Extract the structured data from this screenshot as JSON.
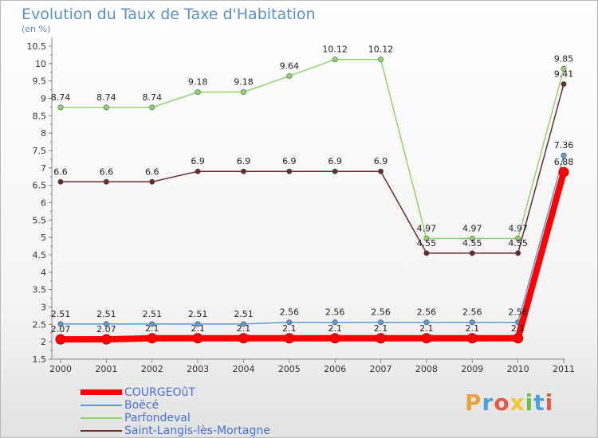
{
  "header": {
    "title": "Evolution du Taux de Taxe d'Habitation",
    "subtitle": "(en %)"
  },
  "branding": {
    "logo_text": "Proxiti",
    "logo_letters": [
      {
        "ch": "P",
        "color": "#e8a33b"
      },
      {
        "ch": "r",
        "color": "#4aa3df"
      },
      {
        "ch": "o",
        "color": "#e25b45"
      },
      {
        "ch": "x",
        "color": "#f2c531"
      },
      {
        "ch": "i",
        "color": "#6cc04a"
      },
      {
        "ch": "t",
        "color": "#4aa3df"
      },
      {
        "ch": "i",
        "color": "#e25b45"
      }
    ]
  },
  "chart_data": {
    "type": "line",
    "title": "Evolution du Taux de Taxe d'Habitation",
    "ylabel": "(en %)",
    "xlabel": "",
    "x": [
      "2000",
      "2001",
      "2002",
      "2003",
      "2004",
      "2005",
      "2006",
      "2007",
      "2008",
      "2009",
      "2010",
      "2011"
    ],
    "ylim": [
      1.5,
      10.5
    ],
    "yticks": [
      1.5,
      2,
      2.5,
      3,
      3.5,
      4,
      4.5,
      5,
      5.5,
      6,
      6.5,
      7,
      7.5,
      8,
      8.5,
      9,
      9.5,
      10,
      10.5
    ],
    "grid": false,
    "legend": "bottom-left",
    "series": [
      {
        "name": "COURGEOûT",
        "color": "#ff0000",
        "values": [
          2.07,
          2.07,
          2.1,
          2.1,
          2.1,
          2.1,
          2.1,
          2.1,
          2.1,
          2.1,
          2.1,
          6.88
        ],
        "labels": [
          "2.07",
          "2.07",
          "2.1",
          "2.1",
          "2.1",
          "2.1",
          "2.1",
          "2.1",
          "2.1",
          "2.1",
          "2.1",
          "6.88"
        ]
      },
      {
        "name": "Boëcé",
        "color": "#5b9bd5",
        "values": [
          2.51,
          2.51,
          2.51,
          2.51,
          2.51,
          2.56,
          2.56,
          2.56,
          2.56,
          2.56,
          2.56,
          7.36
        ],
        "labels": [
          "2.51",
          "2.51",
          "2.51",
          "2.51",
          "2.51",
          "2.56",
          "2.56",
          "2.56",
          "2.56",
          "2.56",
          "2.56",
          "7.36"
        ]
      },
      {
        "name": "Parfondeval",
        "color": "#8ed66c",
        "values": [
          8.74,
          8.74,
          8.74,
          9.18,
          9.18,
          9.64,
          10.12,
          10.12,
          4.97,
          4.97,
          4.97,
          9.85
        ],
        "labels": [
          "8.74",
          "8.74",
          "8.74",
          "9.18",
          "9.18",
          "9.64",
          "10.12",
          "10.12",
          "4.97",
          "4.97",
          "4.97",
          "9.85"
        ]
      },
      {
        "name": "Saint-Langis-lès-Mortagne",
        "color": "#6b2a2a",
        "values": [
          6.6,
          6.6,
          6.6,
          6.9,
          6.9,
          6.9,
          6.9,
          6.9,
          4.55,
          4.55,
          4.55,
          9.41
        ],
        "labels": [
          "6.6",
          "6.6",
          "6.6",
          "6.9",
          "6.9",
          "6.9",
          "6.9",
          "6.9",
          "4.55",
          "4.55",
          "4.55",
          "9.41"
        ]
      }
    ]
  }
}
